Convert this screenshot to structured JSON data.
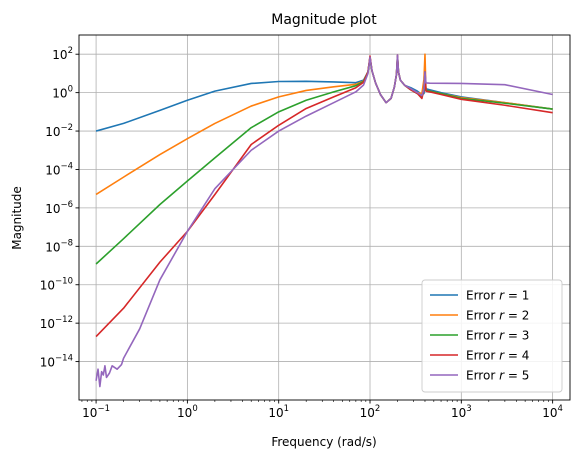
{
  "chart_data": {
    "type": "line",
    "title": "Magnitude plot",
    "xlabel": "Frequency (rad/s)",
    "ylabel": "Magnitude",
    "xscale": "log",
    "yscale": "log",
    "xlim": [
      0.065,
      15500
    ],
    "ylim": [
      1e-16,
      1000
    ],
    "xticks": [
      {
        "value": 0.1,
        "base": "10",
        "exp": "−1"
      },
      {
        "value": 1,
        "base": "10",
        "exp": "0"
      },
      {
        "value": 10,
        "base": "10",
        "exp": "1"
      },
      {
        "value": 100,
        "base": "10",
        "exp": "2"
      },
      {
        "value": 1000,
        "base": "10",
        "exp": "3"
      },
      {
        "value": 10000,
        "base": "10",
        "exp": "4"
      }
    ],
    "yticks": [
      {
        "value": 1e-14,
        "base": "10",
        "exp": "−14"
      },
      {
        "value": 1e-12,
        "base": "10",
        "exp": "−12"
      },
      {
        "value": 1e-10,
        "base": "10",
        "exp": "−10"
      },
      {
        "value": 1e-08,
        "base": "10",
        "exp": "−8"
      },
      {
        "value": 1e-06,
        "base": "10",
        "exp": "−6"
      },
      {
        "value": 0.0001,
        "base": "10",
        "exp": "−4"
      },
      {
        "value": 0.01,
        "base": "10",
        "exp": "−2"
      },
      {
        "value": 1,
        "base": "10",
        "exp": "0"
      },
      {
        "value": 100,
        "base": "10",
        "exp": "2"
      }
    ],
    "grid": true,
    "legend_position": "lower right",
    "series": [
      {
        "name": "Error r = 1",
        "label_prefix": "Error ",
        "label_var": "r",
        "label_suffix": " = 1",
        "color": "#1f77b4",
        "points": [
          [
            0.1,
            0.01
          ],
          [
            0.2,
            0.025
          ],
          [
            0.5,
            0.12
          ],
          [
            1,
            0.4
          ],
          [
            2,
            1.2
          ],
          [
            5,
            3.0
          ],
          [
            10,
            3.8
          ],
          [
            20,
            3.9
          ],
          [
            40,
            3.6
          ],
          [
            70,
            3.3
          ],
          [
            85,
            4.5
          ],
          [
            95,
            12
          ],
          [
            100,
            60
          ],
          [
            105,
            14
          ],
          [
            115,
            3.2
          ],
          [
            130,
            0.8
          ],
          [
            150,
            0.3
          ],
          [
            170,
            0.5
          ],
          [
            185,
            2.0
          ],
          [
            195,
            9
          ],
          [
            200,
            60
          ],
          [
            205,
            12
          ],
          [
            215,
            4.5
          ],
          [
            240,
            2.4
          ],
          [
            280,
            1.8
          ],
          [
            330,
            1.2
          ],
          [
            370,
            0.8
          ],
          [
            390,
            0.9
          ],
          [
            400,
            5
          ],
          [
            410,
            1.6
          ],
          [
            450,
            1.4
          ],
          [
            600,
            1.0
          ],
          [
            1000,
            0.6
          ],
          [
            3000,
            0.3
          ],
          [
            10000,
            0.14
          ]
        ]
      },
      {
        "name": "Error r = 2",
        "label_prefix": "Error ",
        "label_var": "r",
        "label_suffix": " = 2",
        "color": "#ff7f0e",
        "points": [
          [
            0.1,
            5e-06
          ],
          [
            0.2,
            4e-05
          ],
          [
            0.5,
            0.0006
          ],
          [
            1,
            0.004
          ],
          [
            2,
            0.025
          ],
          [
            5,
            0.2
          ],
          [
            10,
            0.6
          ],
          [
            20,
            1.3
          ],
          [
            40,
            2.0
          ],
          [
            70,
            2.7
          ],
          [
            85,
            4.0
          ],
          [
            95,
            12
          ],
          [
            100,
            70
          ],
          [
            105,
            14
          ],
          [
            115,
            3.2
          ],
          [
            130,
            0.8
          ],
          [
            150,
            0.3
          ],
          [
            170,
            0.5
          ],
          [
            185,
            2.0
          ],
          [
            195,
            9
          ],
          [
            200,
            70
          ],
          [
            205,
            12
          ],
          [
            215,
            4.5
          ],
          [
            240,
            2.4
          ],
          [
            280,
            1.5
          ],
          [
            330,
            1.0
          ],
          [
            370,
            0.9
          ],
          [
            390,
            5
          ],
          [
            400,
            100
          ],
          [
            410,
            1.3
          ],
          [
            450,
            1.2
          ],
          [
            600,
            0.9
          ],
          [
            1000,
            0.55
          ],
          [
            3000,
            0.3
          ],
          [
            10000,
            0.14
          ]
        ]
      },
      {
        "name": "Error r = 3",
        "label_prefix": "Error ",
        "label_var": "r",
        "label_suffix": " = 3",
        "color": "#2ca02c",
        "points": [
          [
            0.1,
            1.2e-09
          ],
          [
            0.2,
            2.5e-08
          ],
          [
            0.5,
            1.5e-06
          ],
          [
            1,
            2.5e-05
          ],
          [
            2,
            0.0004
          ],
          [
            5,
            0.015
          ],
          [
            10,
            0.1
          ],
          [
            20,
            0.4
          ],
          [
            40,
            1.1
          ],
          [
            70,
            2.3
          ],
          [
            85,
            3.8
          ],
          [
            95,
            12
          ],
          [
            100,
            70
          ],
          [
            105,
            14
          ],
          [
            115,
            3.2
          ],
          [
            130,
            0.8
          ],
          [
            150,
            0.3
          ],
          [
            170,
            0.5
          ],
          [
            185,
            2.0
          ],
          [
            195,
            9
          ],
          [
            200,
            80
          ],
          [
            205,
            12
          ],
          [
            215,
            4.5
          ],
          [
            240,
            2.4
          ],
          [
            280,
            1.4
          ],
          [
            330,
            0.9
          ],
          [
            370,
            0.6
          ],
          [
            390,
            1.5
          ],
          [
            400,
            12
          ],
          [
            410,
            1.3
          ],
          [
            450,
            1.2
          ],
          [
            600,
            0.9
          ],
          [
            1000,
            0.5
          ],
          [
            3000,
            0.28
          ],
          [
            10000,
            0.14
          ]
        ]
      },
      {
        "name": "Error r = 4",
        "label_prefix": "Error ",
        "label_var": "r",
        "label_suffix": " = 4",
        "color": "#d62728",
        "points": [
          [
            0.1,
            2e-13
          ],
          [
            0.2,
            6e-12
          ],
          [
            0.5,
            1.5e-09
          ],
          [
            1,
            6e-08
          ],
          [
            2,
            5e-06
          ],
          [
            5,
            0.002
          ],
          [
            10,
            0.02
          ],
          [
            20,
            0.15
          ],
          [
            40,
            0.6
          ],
          [
            70,
            1.8
          ],
          [
            85,
            3.5
          ],
          [
            95,
            12
          ],
          [
            100,
            80
          ],
          [
            105,
            14
          ],
          [
            115,
            3.2
          ],
          [
            130,
            0.8
          ],
          [
            150,
            0.3
          ],
          [
            170,
            0.5
          ],
          [
            185,
            2.0
          ],
          [
            195,
            9
          ],
          [
            200,
            90
          ],
          [
            205,
            12
          ],
          [
            215,
            4.5
          ],
          [
            240,
            2.4
          ],
          [
            280,
            1.4
          ],
          [
            330,
            0.9
          ],
          [
            370,
            0.5
          ],
          [
            390,
            1.5
          ],
          [
            400,
            12
          ],
          [
            410,
            1.2
          ],
          [
            450,
            1.1
          ],
          [
            600,
            0.8
          ],
          [
            1000,
            0.45
          ],
          [
            3000,
            0.22
          ],
          [
            10000,
            0.09
          ]
        ]
      },
      {
        "name": "Error r = 5",
        "label_prefix": "Error ",
        "label_var": "r",
        "label_suffix": " = 5",
        "color": "#9467bd",
        "points": [
          [
            0.1,
            1e-15
          ],
          [
            0.105,
            4e-15
          ],
          [
            0.11,
            5e-16
          ],
          [
            0.115,
            3e-15
          ],
          [
            0.12,
            2e-15
          ],
          [
            0.125,
            6e-15
          ],
          [
            0.13,
            1.5e-15
          ],
          [
            0.14,
            2.5e-15
          ],
          [
            0.15,
            6e-15
          ],
          [
            0.17,
            4e-15
          ],
          [
            0.19,
            7e-15
          ],
          [
            0.2,
            1.5e-14
          ],
          [
            0.3,
            5e-13
          ],
          [
            0.5,
            1.8e-10
          ],
          [
            1,
            6e-08
          ],
          [
            2,
            1e-05
          ],
          [
            5,
            0.001
          ],
          [
            10,
            0.01
          ],
          [
            20,
            0.06
          ],
          [
            40,
            0.3
          ],
          [
            70,
            1.1
          ],
          [
            85,
            2.5
          ],
          [
            95,
            10
          ],
          [
            100,
            70
          ],
          [
            105,
            14
          ],
          [
            115,
            3.2
          ],
          [
            130,
            0.8
          ],
          [
            150,
            0.3
          ],
          [
            170,
            0.5
          ],
          [
            185,
            2.0
          ],
          [
            195,
            9
          ],
          [
            200,
            90
          ],
          [
            205,
            12
          ],
          [
            215,
            4.5
          ],
          [
            240,
            2.4
          ],
          [
            280,
            1.6
          ],
          [
            330,
            1.0
          ],
          [
            370,
            0.7
          ],
          [
            390,
            1.6
          ],
          [
            400,
            12
          ],
          [
            410,
            3.2
          ],
          [
            450,
            3.1
          ],
          [
            1000,
            3.0
          ],
          [
            3000,
            2.6
          ],
          [
            10000,
            0.8
          ]
        ]
      }
    ]
  }
}
